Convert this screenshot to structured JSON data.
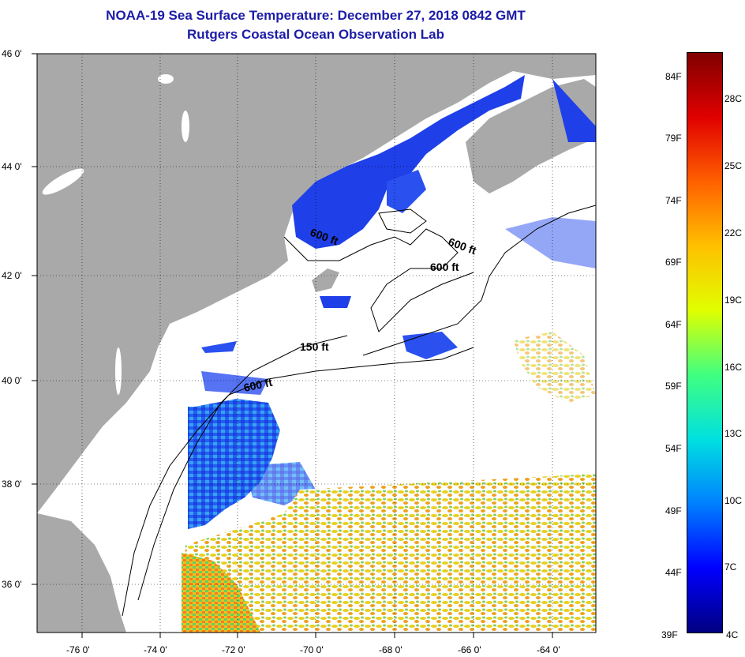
{
  "title_line1": "NOAA-19 Sea Surface Temperature:  December 27, 2018 0842 GMT",
  "title_line2": "Rutgers Coastal Ocean Observation Lab",
  "lat_labels": [
    "46 0'",
    "44 0'",
    "42 0'",
    "40 0'",
    "38 0'",
    "36 0'"
  ],
  "lon_labels": [
    "-76 0'",
    "-74 0'",
    "-72 0'",
    "-70 0'",
    "-68 0'",
    "-66 0'",
    "-64 0'"
  ],
  "depth_labels": [
    "600 ft",
    "600 ft",
    "600 ft",
    "150 ft",
    "600 ft"
  ],
  "colorbar": {
    "fahrenheit": [
      "84F",
      "79F",
      "74F",
      "69F",
      "64F",
      "59F",
      "54F",
      "49F",
      "44F",
      "39F"
    ],
    "celsius": [
      "28C",
      "25C",
      "22C",
      "19C",
      "16C",
      "13C",
      "10C",
      "7C",
      "4C"
    ],
    "colors": [
      "#000080",
      "#0000ff",
      "#0080ff",
      "#00e0e0",
      "#40ff80",
      "#e0ff00",
      "#ffc000",
      "#ff6000",
      "#e00000",
      "#800000"
    ]
  },
  "colors": {
    "land": "#a9a9a9",
    "cold_water": "#1f3fe8",
    "mid_water": "#3fa0e8",
    "warm_water": "#e0d020",
    "title": "#1c1ca8"
  }
}
